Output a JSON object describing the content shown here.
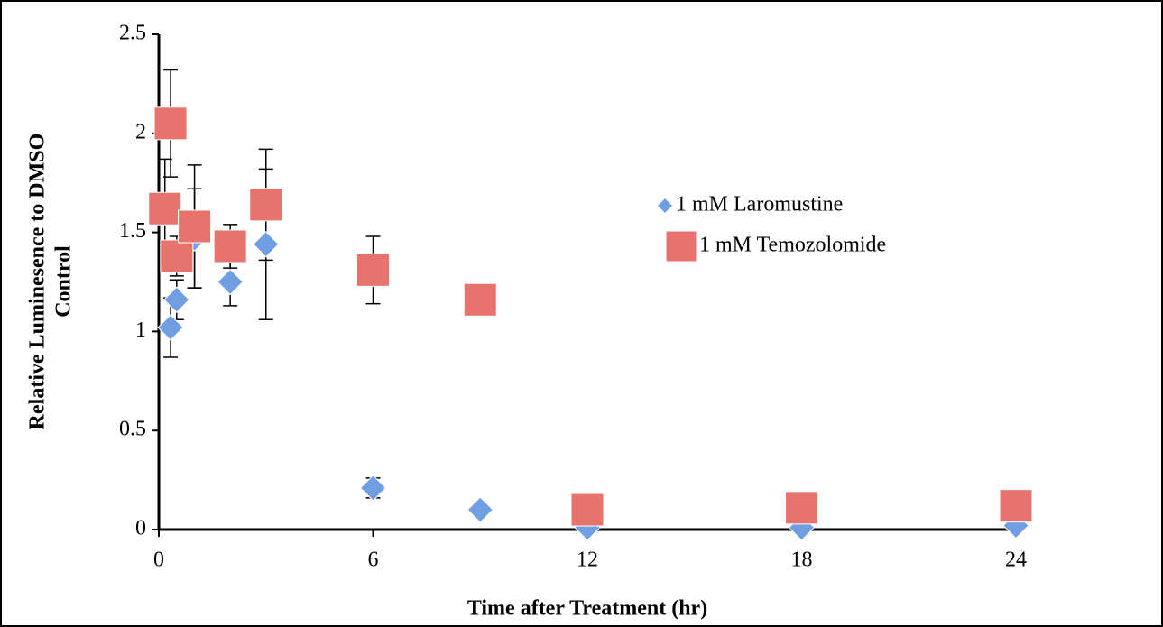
{
  "chart_data": {
    "type": "scatter",
    "xlabel": "Time after Treatment (hr)",
    "ylabel": [
      "Relative Luminesence to DMSO",
      "Control"
    ],
    "xlim": [
      0,
      24
    ],
    "xticks": [
      0,
      6,
      12,
      18,
      24
    ],
    "ylim": [
      0,
      2.5
    ],
    "yticks": [
      0,
      0.5,
      1,
      1.5,
      2,
      2.5
    ],
    "grid": false,
    "legend": "right",
    "series": [
      {
        "name": "1 mM Laromustine",
        "color": "#6f9fe2",
        "marker": "diamond",
        "x": [
          0.33,
          0.5,
          1,
          2,
          3,
          6,
          9,
          12,
          18,
          24
        ],
        "values": [
          1.02,
          1.16,
          1.47,
          1.25,
          1.44,
          0.21,
          0.1,
          0.01,
          0.01,
          0.02
        ],
        "errors": [
          0.15,
          0.1,
          0.25,
          0.12,
          0.38,
          0.05,
          null,
          null,
          null,
          null
        ]
      },
      {
        "name": "1 mM Temozolomide",
        "color": "#e8726c",
        "marker": "square",
        "x": [
          0.17,
          0.33,
          0.5,
          1,
          2,
          3,
          6,
          9,
          12,
          18,
          24
        ],
        "values": [
          1.62,
          2.05,
          1.38,
          1.53,
          1.43,
          1.64,
          1.31,
          1.16,
          0.1,
          0.11,
          0.12
        ],
        "errors": [
          0.25,
          0.27,
          0.1,
          0.31,
          0.11,
          0.28,
          0.17,
          null,
          null,
          null,
          null
        ]
      }
    ]
  }
}
